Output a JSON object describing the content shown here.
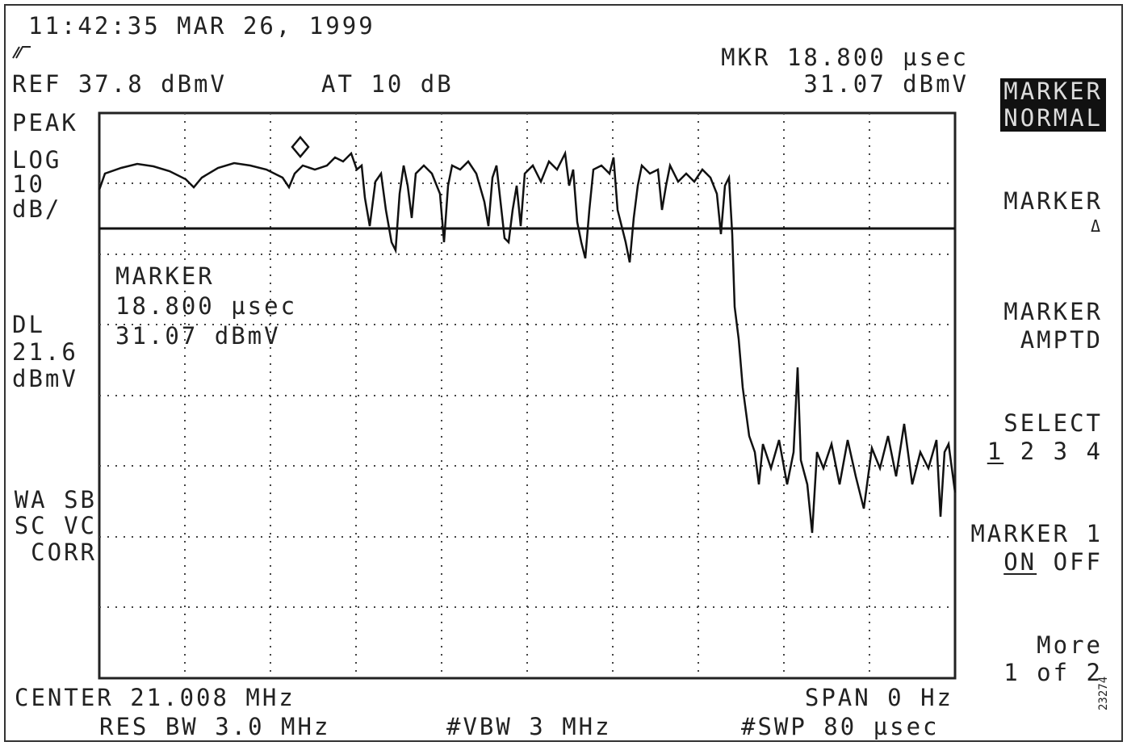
{
  "header": {
    "timestamp": "11:42:35 MAR 26, 1999",
    "reference": "REF 37.8 dBmV",
    "attenuation": "AT 10 dB",
    "marker_position": "MKR 18.800 µsec",
    "marker_amplitude": "31.07 dBmV"
  },
  "left_labels": {
    "detector": "PEAK",
    "scale": [
      "LOG",
      "10",
      "dB/"
    ],
    "display_line": [
      "DL",
      "21.6",
      "dBmV"
    ],
    "status": [
      "WA SB",
      "SC VC",
      "CORR"
    ]
  },
  "marker_readout": [
    "MARKER",
    "18.800 µsec",
    "31.07 dBmV"
  ],
  "softkeys": [
    {
      "lines": [
        "MARKER",
        "NORMAL"
      ]
    },
    {
      "lines": [
        "MARKER",
        "Δ"
      ]
    },
    {
      "lines": [
        "MARKER",
        "AMPTD"
      ]
    },
    {
      "lines": [
        "SELECT"
      ],
      "options": [
        "1",
        "2 3 4"
      ]
    },
    {
      "lines": [
        "MARKER 1"
      ],
      "options": [
        "ON",
        "OFF"
      ]
    },
    {
      "lines": [
        "More",
        "1 of 2"
      ]
    }
  ],
  "footer": {
    "center": "CENTER 21.008 MHz",
    "span": "SPAN 0 Hz",
    "rbw": "RES BW 3.0 MHz",
    "vbw": "#VBW 3 MHz",
    "sweep": "#SWP 80 µsec"
  },
  "figure_id": "23274"
}
